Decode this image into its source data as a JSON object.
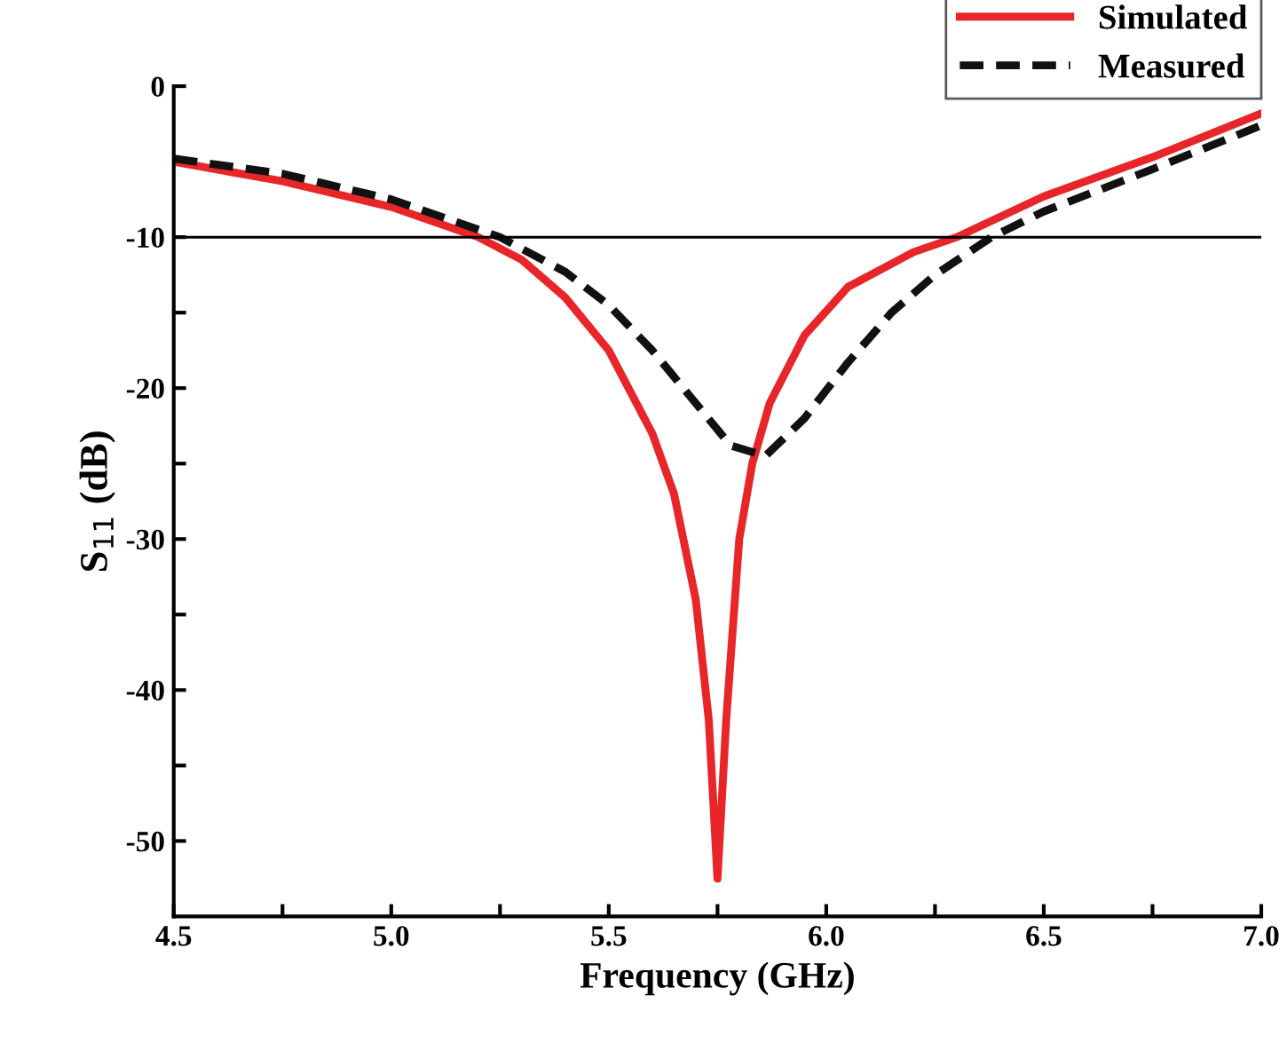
{
  "chart_data": {
    "type": "line",
    "xlabel": "Frequency (GHz)",
    "ylabel": "S$_{11}$ (dB)",
    "xlim": [
      4.5,
      7.0
    ],
    "ylim": [
      -55,
      0
    ],
    "xticks": [
      {
        "value": 4.5,
        "label": "4.5"
      },
      {
        "value": 4.75,
        "label": null
      },
      {
        "value": 5.0,
        "label": "5.0"
      },
      {
        "value": 5.25,
        "label": null
      },
      {
        "value": 5.5,
        "label": "5.5"
      },
      {
        "value": 5.75,
        "label": null
      },
      {
        "value": 6.0,
        "label": "6.0"
      },
      {
        "value": 6.25,
        "label": null
      },
      {
        "value": 6.5,
        "label": "6.5"
      },
      {
        "value": 6.75,
        "label": null
      },
      {
        "value": 7.0,
        "label": "7.0"
      }
    ],
    "yticks": [
      -50,
      {
        "value": -45,
        "label": null
      },
      -40,
      {
        "value": -35,
        "label": null
      },
      -30,
      {
        "value": -25,
        "label": null
      },
      -20,
      {
        "value": -15,
        "label": null
      },
      -10,
      {
        "value": -5,
        "label": null
      },
      0
    ],
    "grid": false,
    "legend": "top right",
    "ref_lines": [
      {
        "axis": "y",
        "value": -10,
        "color": "#000000",
        "line_style": "solid"
      }
    ],
    "series": [
      {
        "name": "Simulated",
        "color": "#e8262a",
        "line_style": "solid",
        "x": [
          4.5,
          4.75,
          5.0,
          5.2,
          5.3,
          5.4,
          5.5,
          5.6,
          5.65,
          5.7,
          5.73,
          5.75,
          5.77,
          5.8,
          5.83,
          5.87,
          5.95,
          6.05,
          6.2,
          6.3,
          6.5,
          6.75,
          7.0
        ],
        "values": [
          -5,
          -6.3,
          -8,
          -10,
          -11.5,
          -14,
          -17.5,
          -23,
          -27,
          -34,
          -42,
          -52.5,
          -42,
          -30,
          -25,
          -21,
          -16.5,
          -13.3,
          -11,
          -10,
          -7.3,
          -4.7,
          -1.8
        ]
      },
      {
        "name": "Measured",
        "color": "#111111",
        "line_style": "dashed",
        "x": [
          4.5,
          4.75,
          5.0,
          5.15,
          5.25,
          5.4,
          5.5,
          5.6,
          5.7,
          5.78,
          5.86,
          5.95,
          6.05,
          6.15,
          6.25,
          6.38,
          6.5,
          6.75,
          7.0
        ],
        "values": [
          -4.8,
          -5.8,
          -7.5,
          -9,
          -10,
          -12.3,
          -14.5,
          -17.5,
          -21,
          -23.8,
          -24.5,
          -22,
          -18.3,
          -15,
          -12.5,
          -10,
          -8.3,
          -5.5,
          -2.6
        ]
      }
    ]
  }
}
